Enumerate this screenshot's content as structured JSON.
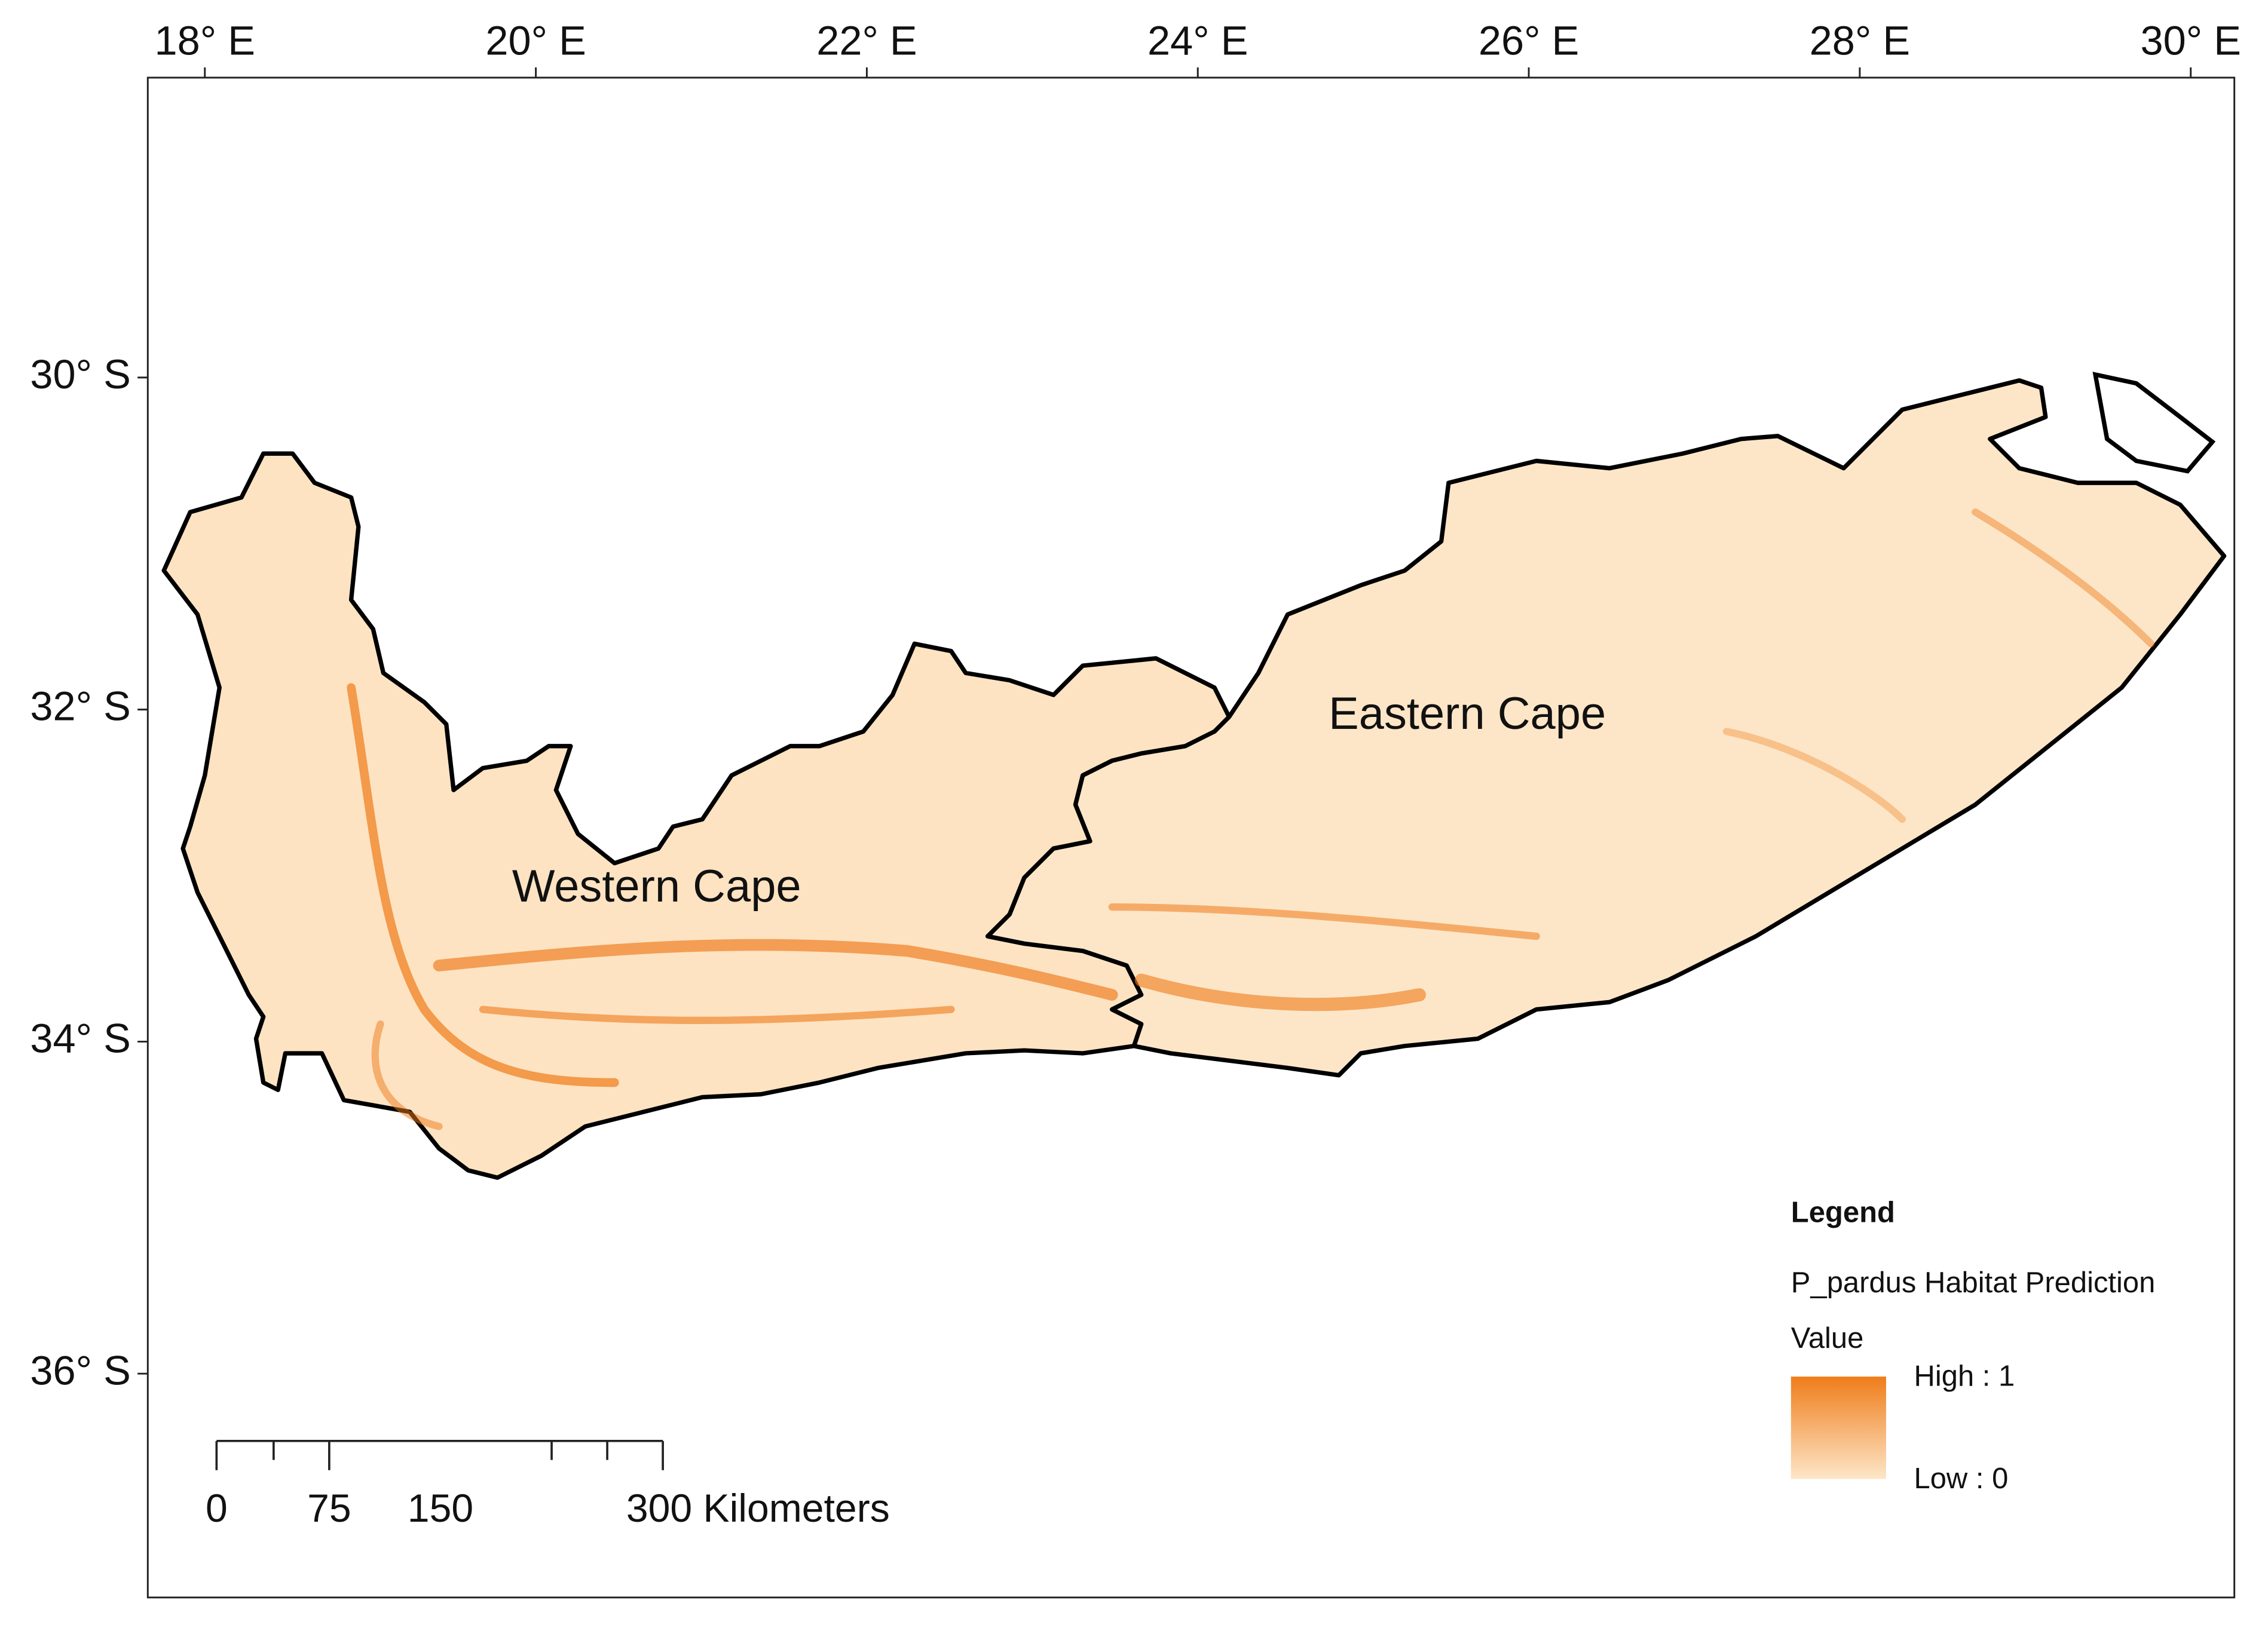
{
  "map": {
    "x_labels": [
      "18° E",
      "20° E",
      "22° E",
      "24° E",
      "26° E",
      "28° E",
      "30° E"
    ],
    "y_labels": [
      "30° S",
      "32° S",
      "34° S",
      "36° S"
    ],
    "regions": [
      {
        "label": "Western Cape"
      },
      {
        "label": "Eastern Cape"
      }
    ],
    "legend": {
      "title": "Legend",
      "layer": "P_pardus Habitat Prediction",
      "field": "Value",
      "high": "High : 1",
      "low": "Low : 0"
    },
    "scale_bar": {
      "labels": [
        "0",
        "75",
        "150",
        "300 Kilometers"
      ]
    }
  }
}
